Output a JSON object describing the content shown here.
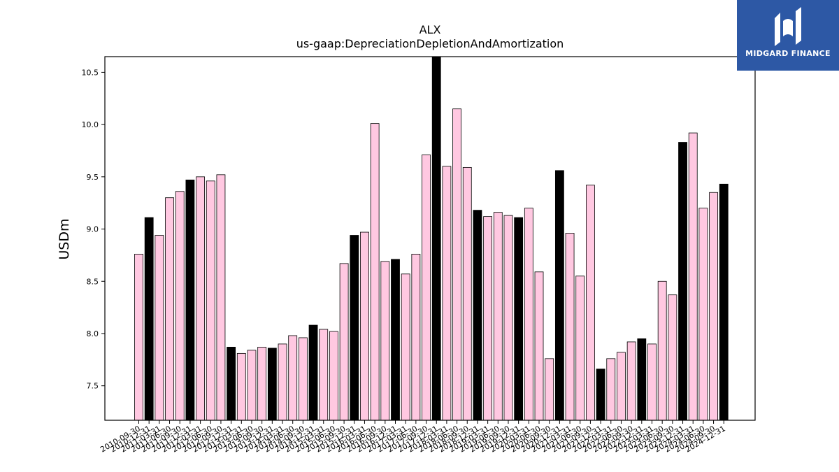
{
  "brand": {
    "name": "MIDGARD FINANCE",
    "logo_icon": "midgard-mark-icon",
    "color": "#2d58a5"
  },
  "chart_data": {
    "type": "bar",
    "title": "ALX",
    "subtitle": "us-gaap:DepreciationDepletionAndAmortization",
    "ylabel": "USDm",
    "xlabel": "",
    "ylim": [
      7.17,
      10.65
    ],
    "yticks": [
      7.5,
      8.0,
      8.5,
      9.0,
      9.5,
      10.0,
      10.5
    ],
    "grid": false,
    "colors": {
      "default": "#ffc8e1",
      "highlight": "#000000",
      "edge": "#000000"
    },
    "categories": [
      "2010-09-30",
      "2010-12-31",
      "2011-03-31",
      "2011-06-30",
      "2011-09-30",
      "2011-12-31",
      "2012-03-31",
      "2012-06-30",
      "2012-09-30",
      "2012-12-31",
      "2013-03-31",
      "2013-06-30",
      "2013-09-30",
      "2013-12-31",
      "2014-03-31",
      "2014-06-30",
      "2014-09-30",
      "2014-12-31",
      "2015-03-31",
      "2015-06-30",
      "2015-09-30",
      "2015-12-31",
      "2016-03-31",
      "2016-06-30",
      "2016-09-30",
      "2016-12-31",
      "2017-03-31",
      "2017-06-30",
      "2017-09-30",
      "2017-12-31",
      "2018-03-31",
      "2018-06-30",
      "2018-09-30",
      "2018-12-31",
      "2019-03-31",
      "2019-06-30",
      "2019-09-30",
      "2019-12-31",
      "2020-03-31",
      "2020-06-30",
      "2020-09-30",
      "2020-12-31",
      "2021-03-31",
      "2021-06-30",
      "2021-09-30",
      "2021-12-31",
      "2022-03-31",
      "2022-06-30",
      "2022-09-30",
      "2022-12-31",
      "2023-03-31",
      "2023-06-30",
      "2023-09-30",
      "2023-12-31",
      "2024-03-31",
      "2024-06-30",
      "2024-09-30",
      "2024-12-31"
    ],
    "values": [
      8.76,
      9.11,
      8.94,
      9.3,
      9.36,
      9.47,
      9.5,
      9.46,
      9.52,
      7.87,
      7.81,
      7.84,
      7.87,
      7.86,
      7.9,
      7.98,
      7.96,
      8.08,
      8.04,
      8.02,
      8.67,
      8.94,
      8.97,
      10.01,
      8.69,
      8.71,
      8.57,
      8.76,
      9.71,
      10.65,
      9.6,
      10.15,
      9.59,
      9.18,
      9.12,
      9.16,
      9.13,
      9.11,
      9.2,
      8.59,
      7.76,
      9.56,
      8.96,
      8.55,
      9.42,
      7.66,
      7.76,
      7.82,
      7.92,
      7.95,
      7.9,
      8.5,
      8.37,
      9.83,
      9.92,
      9.2,
      9.35,
      9.43
    ],
    "highlight": [
      false,
      true,
      false,
      false,
      false,
      true,
      false,
      false,
      false,
      true,
      false,
      false,
      false,
      true,
      false,
      false,
      false,
      true,
      false,
      false,
      false,
      true,
      false,
      false,
      false,
      true,
      false,
      false,
      false,
      true,
      false,
      false,
      false,
      true,
      false,
      false,
      false,
      true,
      false,
      false,
      false,
      true,
      false,
      false,
      false,
      true,
      false,
      false,
      false,
      true,
      false,
      false,
      false,
      true,
      false,
      false,
      false,
      true
    ]
  }
}
